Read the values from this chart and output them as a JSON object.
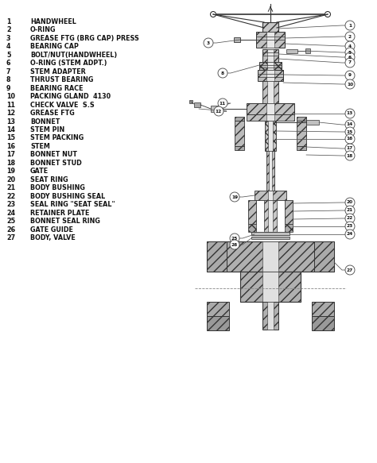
{
  "bg_color": "#ffffff",
  "text_color": "#111111",
  "line_color": "#333333",
  "callout_color": "#555555",
  "parts": [
    {
      "num": "1",
      "name": "HANDWHEEL"
    },
    {
      "num": "2",
      "name": "O-RING"
    },
    {
      "num": "3",
      "name": "GREASE FTG (BRG CAP) PRESS"
    },
    {
      "num": "4",
      "name": "BEARING CAP"
    },
    {
      "num": "5",
      "name": "BOLT/NUT(HANDWHEEL)"
    },
    {
      "num": "6",
      "name": "O-RING (STEM ADPT.)"
    },
    {
      "num": "7",
      "name": "STEM ADAPTER"
    },
    {
      "num": "8",
      "name": "THRUST BEARING"
    },
    {
      "num": "9",
      "name": "BEARING RACE"
    },
    {
      "num": "10",
      "name": "PACKING GLAND  4130"
    },
    {
      "num": "11",
      "name": "CHECK VALVE  S.S"
    },
    {
      "num": "12",
      "name": "GREASE FTG"
    },
    {
      "num": "13",
      "name": "BONNET"
    },
    {
      "num": "14",
      "name": "STEM PIN"
    },
    {
      "num": "15",
      "name": "STEM PACKING"
    },
    {
      "num": "16",
      "name": "STEM"
    },
    {
      "num": "17",
      "name": "BONNET NUT"
    },
    {
      "num": "18",
      "name": "BONNET STUD"
    },
    {
      "num": "19",
      "name": "GATE"
    },
    {
      "num": "20",
      "name": "SEAT RING"
    },
    {
      "num": "21",
      "name": "BODY BUSHING"
    },
    {
      "num": "22",
      "name": "BODY BUSHING SEAL"
    },
    {
      "num": "23",
      "name": "SEAL RING \"SEAT SEAL\""
    },
    {
      "num": "24",
      "name": "RETAINER PLATE"
    },
    {
      "num": "25",
      "name": "BONNET SEAL RING"
    },
    {
      "num": "26",
      "name": "GATE GUIDE"
    },
    {
      "num": "27",
      "name": "BODY, VALVE"
    }
  ]
}
